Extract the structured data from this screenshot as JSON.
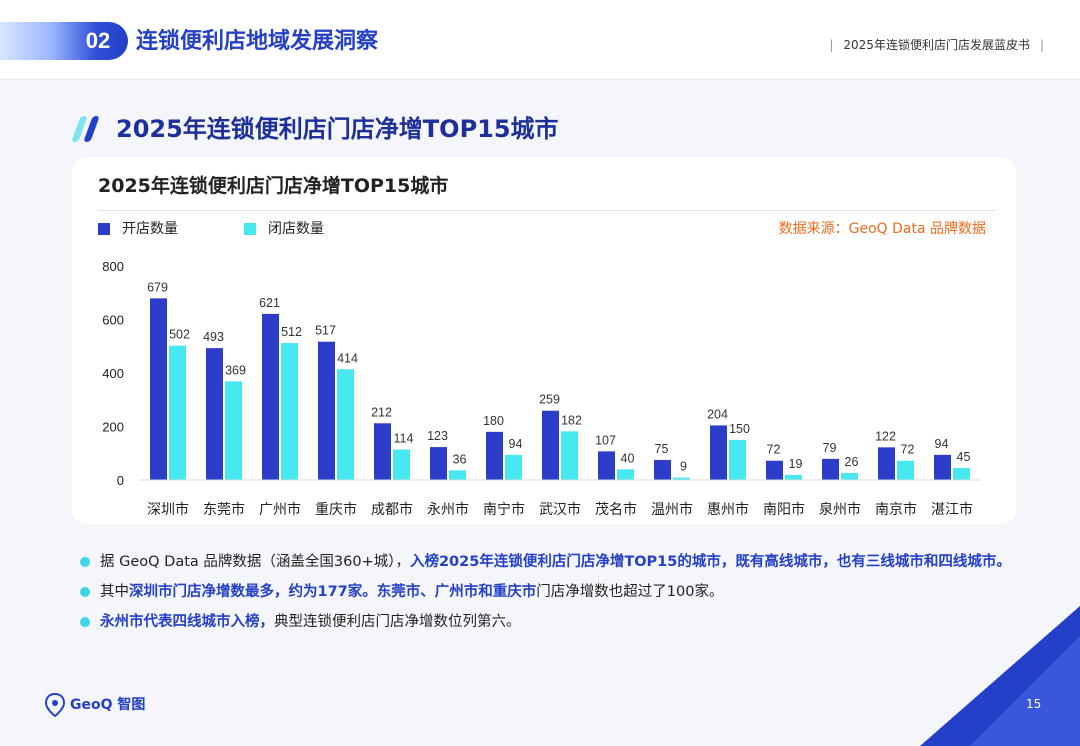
{
  "header": {
    "section_number": "02",
    "section_title": "连锁便利店地域发展洞察",
    "report_name": "2025年连锁便利店门店发展蓝皮书",
    "divider": "|"
  },
  "page_heading": "2025年连锁便利店门店净增TOP15城市",
  "source_note": "数据来源：GeoQ Data 品牌数据",
  "colors": {
    "brand_blue": "#2440c8",
    "open_bar": "#2b3dc9",
    "close_bar": "#47e8ef",
    "accent_orange": "#f26a1b",
    "bullet_dot": "#3ed6e6"
  },
  "chart_data": {
    "type": "bar",
    "title": "2025年连锁便利店门店净增TOP15城市",
    "categories": [
      "深圳市",
      "东莞市",
      "广州市",
      "重庆市",
      "成都市",
      "永州市",
      "南宁市",
      "武汉市",
      "茂名市",
      "温州市",
      "惠州市",
      "南阳市",
      "泉州市",
      "南京市",
      "湛江市"
    ],
    "series": [
      {
        "name": "开店数量",
        "values": [
          679,
          493,
          621,
          517,
          212,
          123,
          180,
          259,
          107,
          75,
          204,
          72,
          79,
          122,
          94
        ]
      },
      {
        "name": "闭店数量",
        "values": [
          502,
          369,
          512,
          414,
          114,
          36,
          94,
          182,
          40,
          9,
          150,
          19,
          26,
          72,
          45
        ]
      }
    ],
    "ylim": [
      0,
      800
    ],
    "yticks": [
      0,
      200,
      400,
      600,
      800
    ],
    "xlabel": "",
    "ylabel": "",
    "grid": false,
    "legend_position": "top-left",
    "data_labels": true
  },
  "bullets": [
    {
      "pre": "据 GeoQ Data 品牌数据（涵盖全国360+城），",
      "hl": "入榜2025年连锁便利店门店净增TOP15的城市，既有高线城市，也有三线城市和四线城市。",
      "post": ""
    },
    {
      "pre": "其中",
      "hl": "深圳市门店净增数最多，约为177家。东莞市、广州市和重庆市",
      "post": "门店净增数也超过了100家。"
    },
    {
      "pre": "",
      "hl": "永州市代表四线城市入榜，",
      "post": "典型连锁便利店门店净增数位列第六。"
    }
  ],
  "footer": {
    "logo_text": "GeoQ 智图",
    "page_number": "15"
  }
}
